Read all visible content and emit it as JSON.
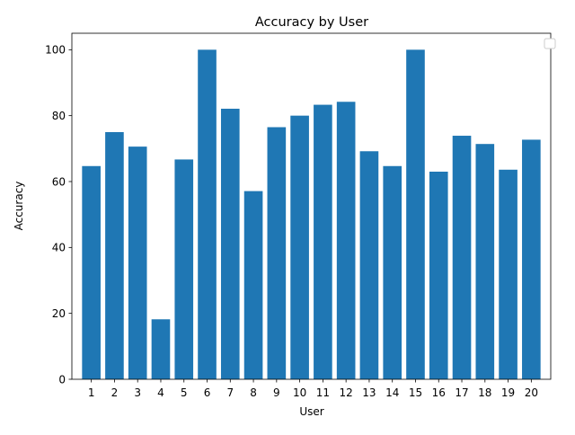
{
  "chart_data": {
    "type": "bar",
    "title": "Accuracy by User",
    "xlabel": "User",
    "ylabel": "Accuracy",
    "categories": [
      "1",
      "2",
      "3",
      "4",
      "5",
      "6",
      "7",
      "8",
      "9",
      "10",
      "11",
      "12",
      "13",
      "14",
      "15",
      "16",
      "17",
      "18",
      "19",
      "20"
    ],
    "values": [
      64.7,
      75.0,
      70.6,
      18.2,
      66.7,
      100.0,
      82.1,
      57.1,
      76.5,
      80.0,
      83.3,
      84.2,
      69.2,
      64.7,
      100.0,
      63.0,
      73.9,
      71.4,
      63.6,
      72.7
    ],
    "ylim": [
      0,
      105
    ],
    "yticks": [
      0,
      20,
      40,
      60,
      80,
      100
    ],
    "grid": false,
    "legend": {
      "placement": "top-right",
      "entries": []
    },
    "colors": {
      "bar": "#1f77b4",
      "axis": "#000000",
      "legend_border": "#cccccc"
    }
  }
}
